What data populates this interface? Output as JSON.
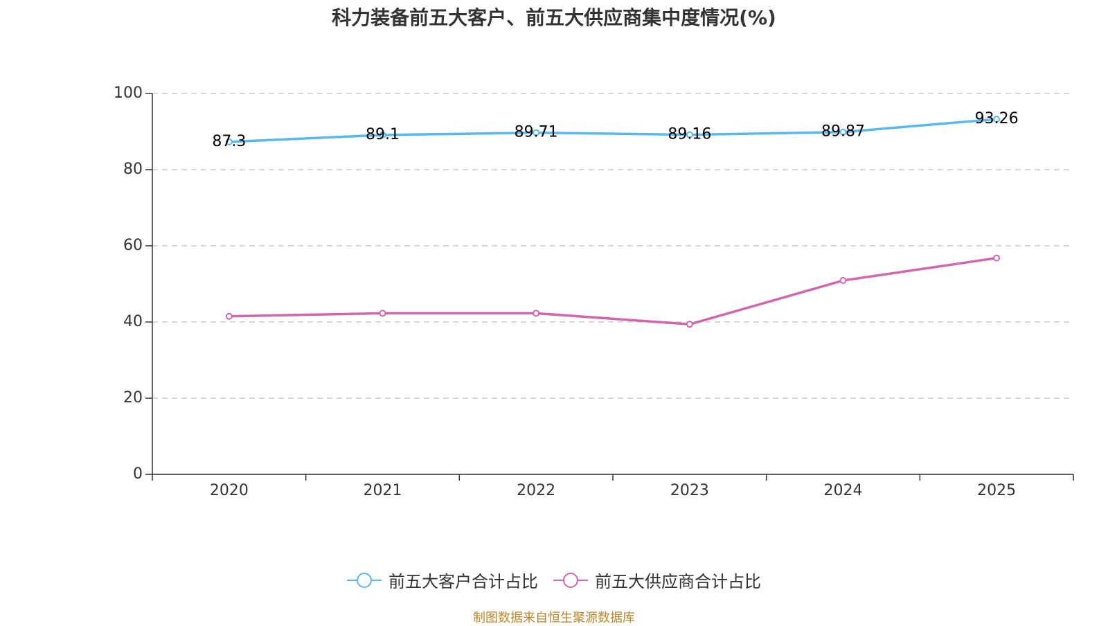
{
  "chart_data": {
    "type": "line",
    "title": "科力装备前五大客户、前五大供应商集中度情况(%)",
    "categories": [
      "2020",
      "2021",
      "2022",
      "2023",
      "2024",
      "2025"
    ],
    "series": [
      {
        "name": "前五大客户合计占比",
        "values": [
          87.3,
          89.1,
          89.71,
          89.16,
          89.87,
          93.26
        ],
        "color": "#5ab8ec",
        "show_labels": true,
        "labels": [
          "87.3",
          "89.1",
          "89.71",
          "89.16",
          "89.87",
          "93.26"
        ]
      },
      {
        "name": "前五大供应商合计占比",
        "values": [
          41.5,
          42.3,
          42.3,
          39.4,
          50.9,
          56.8
        ],
        "color": "#d166ac",
        "show_labels": false
      }
    ],
    "ylim": [
      0,
      100
    ],
    "yticks": [
      "0",
      "20",
      "40",
      "60",
      "80",
      "100"
    ],
    "ytick_values": [
      0,
      20,
      40,
      60,
      80,
      100
    ],
    "grid": true,
    "legend_position": "bottom-center",
    "xlabel": "",
    "ylabel": ""
  },
  "footer": {
    "source": "制图数据来自恒生聚源数据库"
  }
}
